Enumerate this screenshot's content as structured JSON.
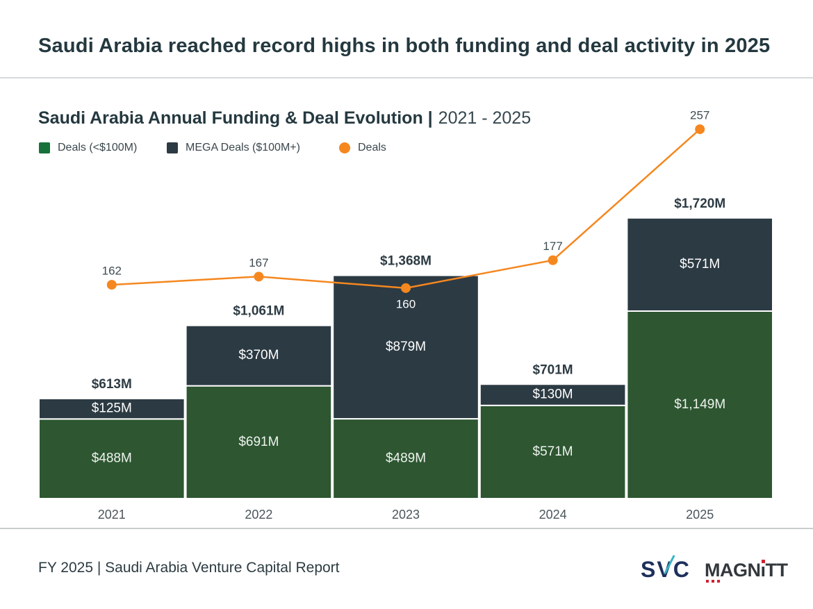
{
  "header": {
    "title": "Saudi Arabia reached record highs in both funding and deal activity in 2025"
  },
  "chart": {
    "title_bold": "Saudi Arabia Annual Funding & Deal Evolution |",
    "title_range": "2021 - 2025"
  },
  "chart_data": {
    "type": "bar",
    "subtype": "stacked-bar-with-line",
    "title": "Saudi Arabia Annual Funding & Deal Evolution | 2021 - 2025",
    "categories": [
      "2021",
      "2022",
      "2023",
      "2024",
      "2025"
    ],
    "series": [
      {
        "name": "Deals (<$100M)",
        "type": "bar",
        "color": "#2d5631",
        "values": [
          488,
          691,
          489,
          571,
          1149
        ],
        "labels": [
          "$488M",
          "$691M",
          "$489M",
          "$571M",
          "$1,149M"
        ]
      },
      {
        "name": "MEGA Deals ($100M+)",
        "type": "bar",
        "color": "#2c3a43",
        "values": [
          125,
          370,
          879,
          130,
          571
        ],
        "labels": [
          "$125M",
          "$370M",
          "$879M",
          "$130M",
          "$571M"
        ]
      },
      {
        "name": "Deals",
        "type": "line",
        "color": "#f5871f",
        "values": [
          162,
          167,
          160,
          177,
          257
        ],
        "label_positions": [
          "above",
          "above",
          "below",
          "above",
          "above"
        ]
      }
    ],
    "totals": {
      "values": [
        613,
        1061,
        1368,
        701,
        1720
      ],
      "labels": [
        "$613M",
        "$1,061M",
        "$1,368M",
        "$701M",
        "$1,720M"
      ]
    },
    "legend": [
      {
        "label": "Deals (<$100M)",
        "swatch": "square",
        "color": "#16713a"
      },
      {
        "label": "MEGA Deals ($100M+)",
        "swatch": "square",
        "color": "#2c3a43"
      },
      {
        "label": "Deals",
        "swatch": "circle",
        "color": "#f5871f"
      }
    ],
    "legend_position": "top-left",
    "grid": false,
    "value_unit": "USD millions",
    "ylim_funding": [
      0,
      2000
    ],
    "ylim_deals": [
      0,
      280
    ]
  },
  "footer": {
    "caption": "FY 2025 | Saudi Arabia Venture Capital Report",
    "logos": {
      "svc": "SVC",
      "magnitt": {
        "m": "M",
        "agn": "AGN",
        "i": "ı",
        "tt": "TT"
      }
    }
  }
}
